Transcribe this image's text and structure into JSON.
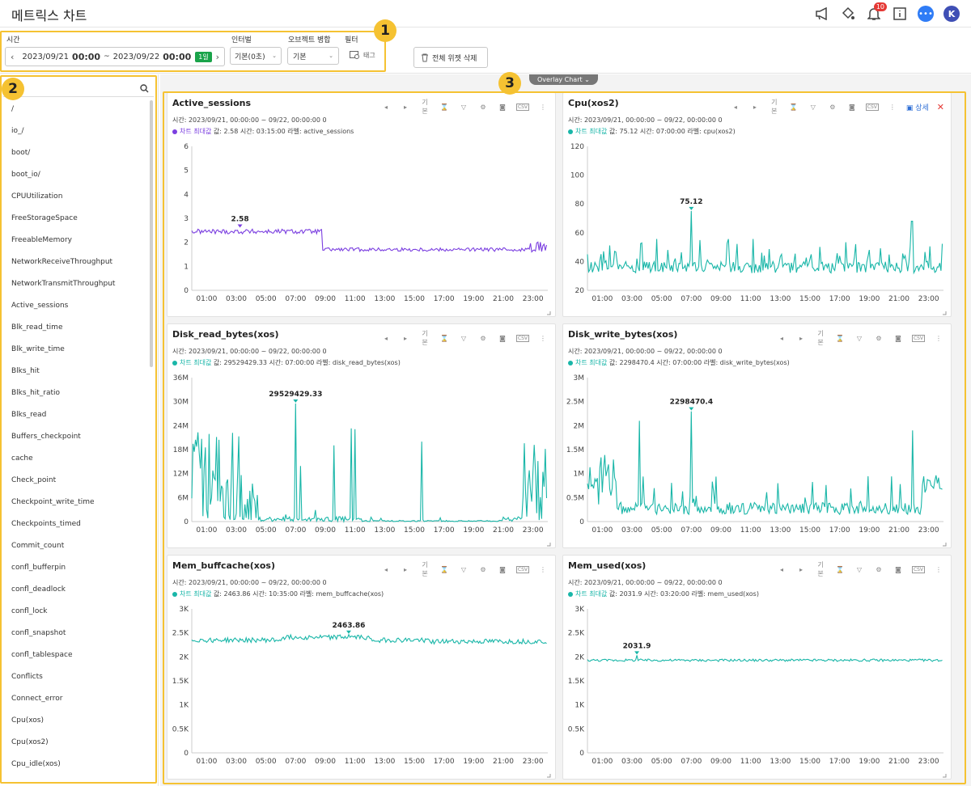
{
  "app": {
    "title": "메트릭스 차트",
    "notification_count": "10",
    "avatar_initial": "K"
  },
  "toolbar": {
    "time_label": "시간",
    "date_start": "2023/09/21",
    "time_start": "00:00",
    "tilde": "~",
    "date_end": "2023/09/22",
    "time_end": "00:00",
    "range_badge": "1일",
    "interval_label": "인터벌",
    "interval_value": "기본(0초)",
    "merge_label": "오브젝트 병합",
    "merge_value": "기본",
    "filter_label": "필터",
    "filter_value": "태그",
    "delete_all_label": "전체 위젯 삭제"
  },
  "callouts": [
    "1",
    "2",
    "3"
  ],
  "sidebar": {
    "items": [
      "/",
      "io_/",
      "boot/",
      "boot_io/",
      "CPUUtilization",
      "FreeStorageSpace",
      "FreeableMemory",
      "NetworkReceiveThroughput",
      "NetworkTransmitThroughput",
      "Active_sessions",
      "Blk_read_time",
      "Blk_write_time",
      "Blks_hit",
      "Blks_hit_ratio",
      "Blks_read",
      "Buffers_checkpoint",
      "cache",
      "Check_point",
      "Checkpoint_write_time",
      "Checkpoints_timed",
      "Commit_count",
      "confl_bufferpin",
      "confl_deadlock",
      "confl_lock",
      "confl_snapshot",
      "confl_tablespace",
      "Conflicts",
      "Connect_error",
      "Cpu(xos)",
      "Cpu(xos2)",
      "Cpu_idle(xos)"
    ]
  },
  "overlay_button": "Overlay Chart",
  "card_tools": {
    "basic": "기본",
    "detail": "상세",
    "csv": "CSV",
    "close": "✕"
  },
  "chart_data": [
    {
      "type": "line",
      "title": "Active_sessions",
      "meta": "시간: 2023/09/21, 00:00:00 ~ 09/22, 00:00:00   0",
      "stat_tag": "차트 최대값",
      "stat_detail": "값: 2.58   시간: 03:15:00   라벨: active_sessions",
      "series_color": "#7b3fe0",
      "y_ticks": [
        "0",
        "1",
        "2",
        "3",
        "4",
        "5",
        "6"
      ],
      "ylim": [
        0,
        6
      ],
      "x_ticks": [
        "01:00",
        "03:00",
        "05:00",
        "07:00",
        "09:00",
        "11:00",
        "13:00",
        "15:00",
        "17:00",
        "19:00",
        "21:00",
        "23:00"
      ],
      "peak": {
        "x": 3.25,
        "y": 2.58,
        "label": "2.58"
      },
      "profile": "sessions"
    },
    {
      "type": "line",
      "title": "Cpu(xos2)",
      "meta": "시간: 2023/09/21, 00:00:00 ~ 09/22, 00:00:00   0",
      "stat_tag": "차트 최대값",
      "stat_detail": "값: 75.12   시간: 07:00:00   라벨: cpu(xos2)",
      "series_color": "#19b6a8",
      "y_ticks": [
        "20",
        "40",
        "60",
        "80",
        "100",
        "120"
      ],
      "ylim": [
        20,
        120
      ],
      "x_ticks": [
        "01:00",
        "03:00",
        "05:00",
        "07:00",
        "09:00",
        "11:00",
        "13:00",
        "15:00",
        "17:00",
        "19:00",
        "21:00",
        "23:00"
      ],
      "peak": {
        "x": 7.0,
        "y": 75.12,
        "label": "75.12"
      },
      "profile": "cpu"
    },
    {
      "type": "line",
      "title": "Disk_read_bytes(xos)",
      "meta": "시간: 2023/09/21, 00:00:00 ~ 09/22, 00:00:00   0",
      "stat_tag": "차트 최대값",
      "stat_detail": "값: 29529429.33   시간: 07:00:00   라벨: disk_read_bytes(xos)",
      "series_color": "#19b6a8",
      "y_ticks": [
        "0",
        "6M",
        "12M",
        "18M",
        "24M",
        "30M",
        "36M"
      ],
      "ylim": [
        0,
        36
      ],
      "x_ticks": [
        "01:00",
        "03:00",
        "05:00",
        "07:00",
        "09:00",
        "11:00",
        "13:00",
        "15:00",
        "17:00",
        "19:00",
        "21:00",
        "23:00"
      ],
      "peak": {
        "x": 7.0,
        "y": 29.53,
        "label": "29529429.33"
      },
      "profile": "diskread"
    },
    {
      "type": "line",
      "title": "Disk_write_bytes(xos)",
      "meta": "시간: 2023/09/21, 00:00:00 ~ 09/22, 00:00:00   0",
      "stat_tag": "차트 최대값",
      "stat_detail": "값: 2298470.4   시간: 07:00:00   라벨: disk_write_bytes(xos)",
      "series_color": "#19b6a8",
      "y_ticks": [
        "0",
        "0.5M",
        "1M",
        "1.5M",
        "2M",
        "2.5M",
        "3M"
      ],
      "ylim": [
        0,
        3
      ],
      "x_ticks": [
        "01:00",
        "03:00",
        "05:00",
        "07:00",
        "09:00",
        "11:00",
        "13:00",
        "15:00",
        "17:00",
        "19:00",
        "21:00",
        "23:00"
      ],
      "peak": {
        "x": 7.0,
        "y": 2.298,
        "label": "2298470.4"
      },
      "profile": "diskwrite"
    },
    {
      "type": "line",
      "title": "Mem_buffcache(xos)",
      "meta": "시간: 2023/09/21, 00:00:00 ~ 09/22, 00:00:00   0",
      "stat_tag": "차트 최대값",
      "stat_detail": "값: 2463.86   시간: 10:35:00   라벨: mem_buffcache(xos)",
      "series_color": "#19b6a8",
      "y_ticks": [
        "0",
        "0.5K",
        "1K",
        "1.5K",
        "2K",
        "2.5K",
        "3K"
      ],
      "ylim": [
        0,
        3
      ],
      "x_ticks": [
        "01:00",
        "03:00",
        "05:00",
        "07:00",
        "09:00",
        "11:00",
        "13:00",
        "15:00",
        "17:00",
        "19:00",
        "21:00",
        "23:00"
      ],
      "peak": {
        "x": 10.58,
        "y": 2.464,
        "label": "2463.86"
      },
      "profile": "buffcache"
    },
    {
      "type": "line",
      "title": "Mem_used(xos)",
      "meta": "시간: 2023/09/21, 00:00:00 ~ 09/22, 00:00:00   0",
      "stat_tag": "차트 최대값",
      "stat_detail": "값: 2031.9   시간: 03:20:00   라벨: mem_used(xos)",
      "series_color": "#19b6a8",
      "y_ticks": [
        "0",
        "0.5K",
        "1K",
        "1.5K",
        "2K",
        "2.5K",
        "3K"
      ],
      "ylim": [
        0,
        3
      ],
      "x_ticks": [
        "01:00",
        "03:00",
        "05:00",
        "07:00",
        "09:00",
        "11:00",
        "13:00",
        "15:00",
        "17:00",
        "19:00",
        "21:00",
        "23:00"
      ],
      "peak": {
        "x": 3.33,
        "y": 2.032,
        "label": "2031.9"
      },
      "profile": "memused"
    }
  ]
}
